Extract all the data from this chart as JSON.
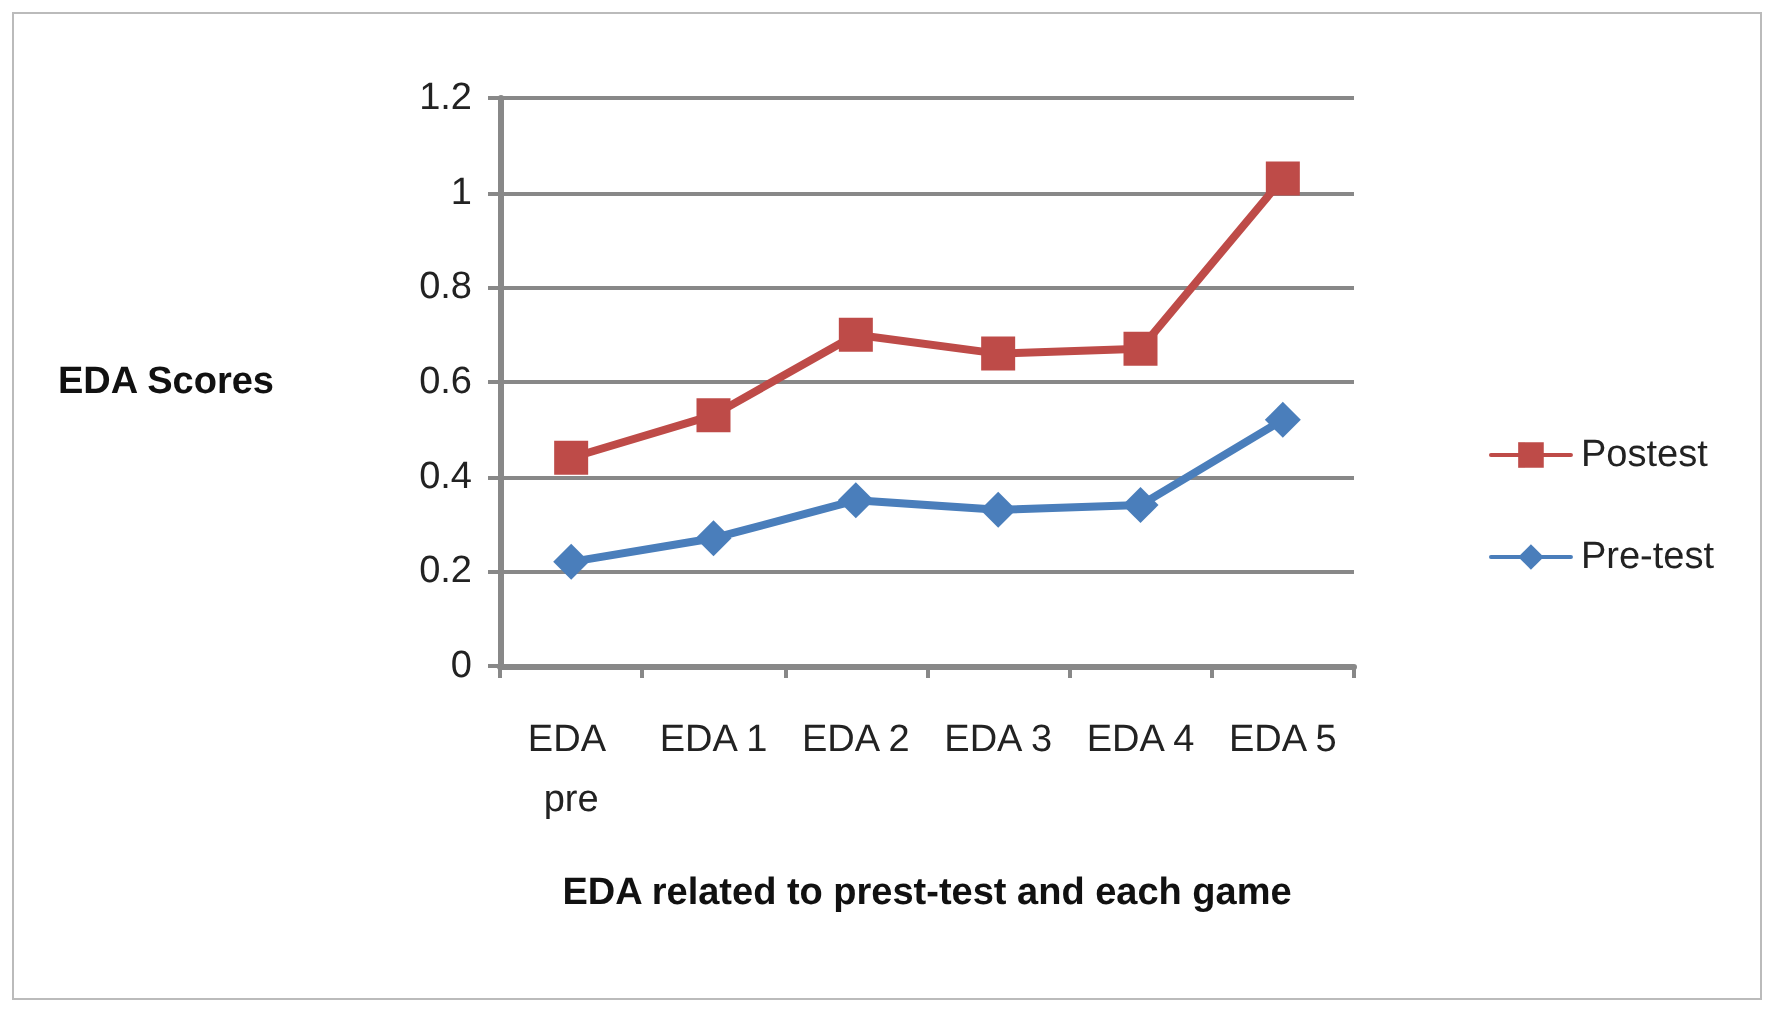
{
  "chart_data": {
    "type": "line",
    "xlabel": "EDA related to prest-test and each game",
    "ylabel": "EDA Scores",
    "categories": [
      "EDA pre",
      "EDA 1",
      "EDA 2",
      "EDA 3",
      "EDA 4",
      "EDA 5"
    ],
    "series": [
      {
        "name": "Postest",
        "color": "#be4b48",
        "marker": "square",
        "values": [
          0.44,
          0.53,
          0.7,
          0.66,
          0.67,
          1.03
        ]
      },
      {
        "name": "Pre-test",
        "color": "#4a7ebb",
        "marker": "diamond",
        "values": [
          0.22,
          0.27,
          0.35,
          0.33,
          0.34,
          0.52
        ]
      }
    ],
    "ylim": [
      0,
      1.2
    ],
    "yticks": [
      0,
      0.2,
      0.4,
      0.6,
      0.8,
      1,
      1.2
    ],
    "grid": "y",
    "legend": "right",
    "line_style": "solid"
  }
}
